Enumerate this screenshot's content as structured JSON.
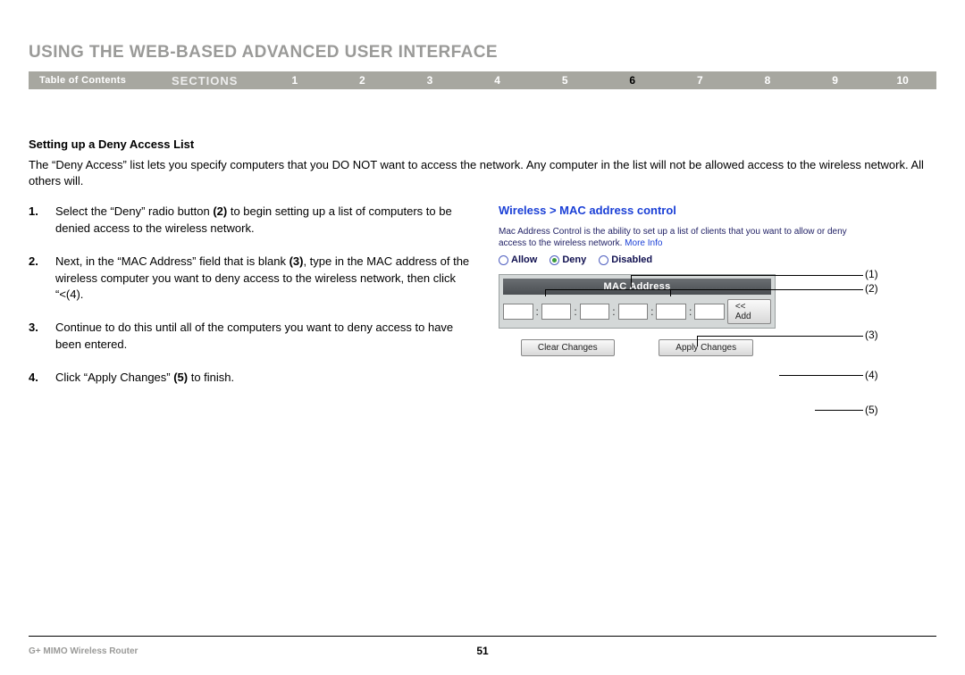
{
  "title": "USING THE WEB-BASED ADVANCED USER INTERFACE",
  "nav": {
    "toc": "Table of Contents",
    "sections_label": "SECTIONS",
    "items": [
      "1",
      "2",
      "3",
      "4",
      "5",
      "6",
      "7",
      "8",
      "9",
      "10"
    ],
    "active_index": 5
  },
  "subheading": "Setting up a Deny Access List",
  "intro": "The “Deny Access” list lets you specify computers that you DO NOT want to access the network. Any computer in the list will not be allowed access to the wireless network. All others will.",
  "steps": [
    {
      "n": "1.",
      "html": "Select the “Deny” radio button <b>(2)</b> to begin setting up a list of computers to be denied access to the wireless network."
    },
    {
      "n": "2.",
      "html": "Next, in the “MAC Address” field that is blank <b>(3)</b>, type in the MAC address of the wireless computer you want to deny access to the wireless network, then click “<<Add” <b>(4)</b>."
    },
    {
      "n": "3.",
      "html": "Continue to do this until all of the computers you want to deny access to have been entered."
    },
    {
      "n": "4.",
      "html": "Click “Apply Changes” <b>(5)</b> to finish."
    }
  ],
  "shot": {
    "title": "Wireless > MAC address control",
    "info_prefix": "Mac Address Control is the ability to set up a list of clients that you want to allow or deny access to the wireless network. ",
    "more_info": "More Info",
    "radios": {
      "allow": "Allow",
      "deny": "Deny",
      "disabled": "Disabled",
      "selected": "deny"
    },
    "mac_header": "MAC Address",
    "add_btn": "<< Add",
    "clear_btn": "Clear Changes",
    "apply_btn": "Apply Changes"
  },
  "callouts": {
    "c1": "(1)",
    "c2": "(2)",
    "c3": "(3)",
    "c4": "(4)",
    "c5": "(5)"
  },
  "footer": {
    "left": "G+ MIMO Wireless Router",
    "page": "51"
  },
  "colors": {
    "muted": "#9a9a98",
    "navbg": "#a7a7a0",
    "link": "#1a3fd6"
  }
}
